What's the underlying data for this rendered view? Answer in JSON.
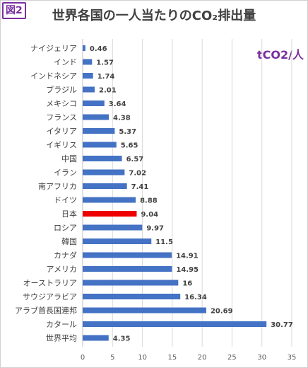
{
  "badge": "図2",
  "unit_label": "tCO2/人",
  "chart_data": {
    "type": "bar",
    "orientation": "horizontal",
    "title": "世界各国の一人当たりのCO₂排出量",
    "categories": [
      "ナイジェリア",
      "インド",
      "インドネシア",
      "ブラジル",
      "メキシコ",
      "フランス",
      "イタリア",
      "イギリス",
      "中国",
      "イラン",
      "南アフリカ",
      "ドイツ",
      "日本",
      "ロシア",
      "韓国",
      "カナダ",
      "アメリカ",
      "オーストラリア",
      "サウジアラビア",
      "アラブ首長国連邦",
      "カタール",
      "世界平均"
    ],
    "values": [
      0.46,
      1.57,
      1.74,
      2.01,
      3.64,
      4.38,
      5.37,
      5.65,
      6.57,
      7.02,
      7.41,
      8.88,
      9.04,
      9.97,
      11.5,
      14.91,
      14.95,
      16,
      16.34,
      20.69,
      30.77,
      4.35
    ],
    "data_labels": [
      "0.46",
      "1.57",
      "1.74",
      "2.01",
      "3.64",
      "4.38",
      "5.37",
      "5.65",
      "6.57",
      "7.02",
      "7.41",
      "8.88",
      "9.04",
      "9.97",
      "11.5",
      "14.91",
      "14.95",
      "16",
      "16.34",
      "20.69",
      "30.77",
      "4.35"
    ],
    "xlim": [
      0,
      35
    ],
    "xticks": [
      "0",
      "5",
      "10",
      "15",
      "20",
      "25",
      "30",
      "35"
    ],
    "grid": true,
    "legend": "none",
    "bar_color": "#4472c4",
    "highlight_category": "日本",
    "highlight_color": "#ee0000"
  }
}
